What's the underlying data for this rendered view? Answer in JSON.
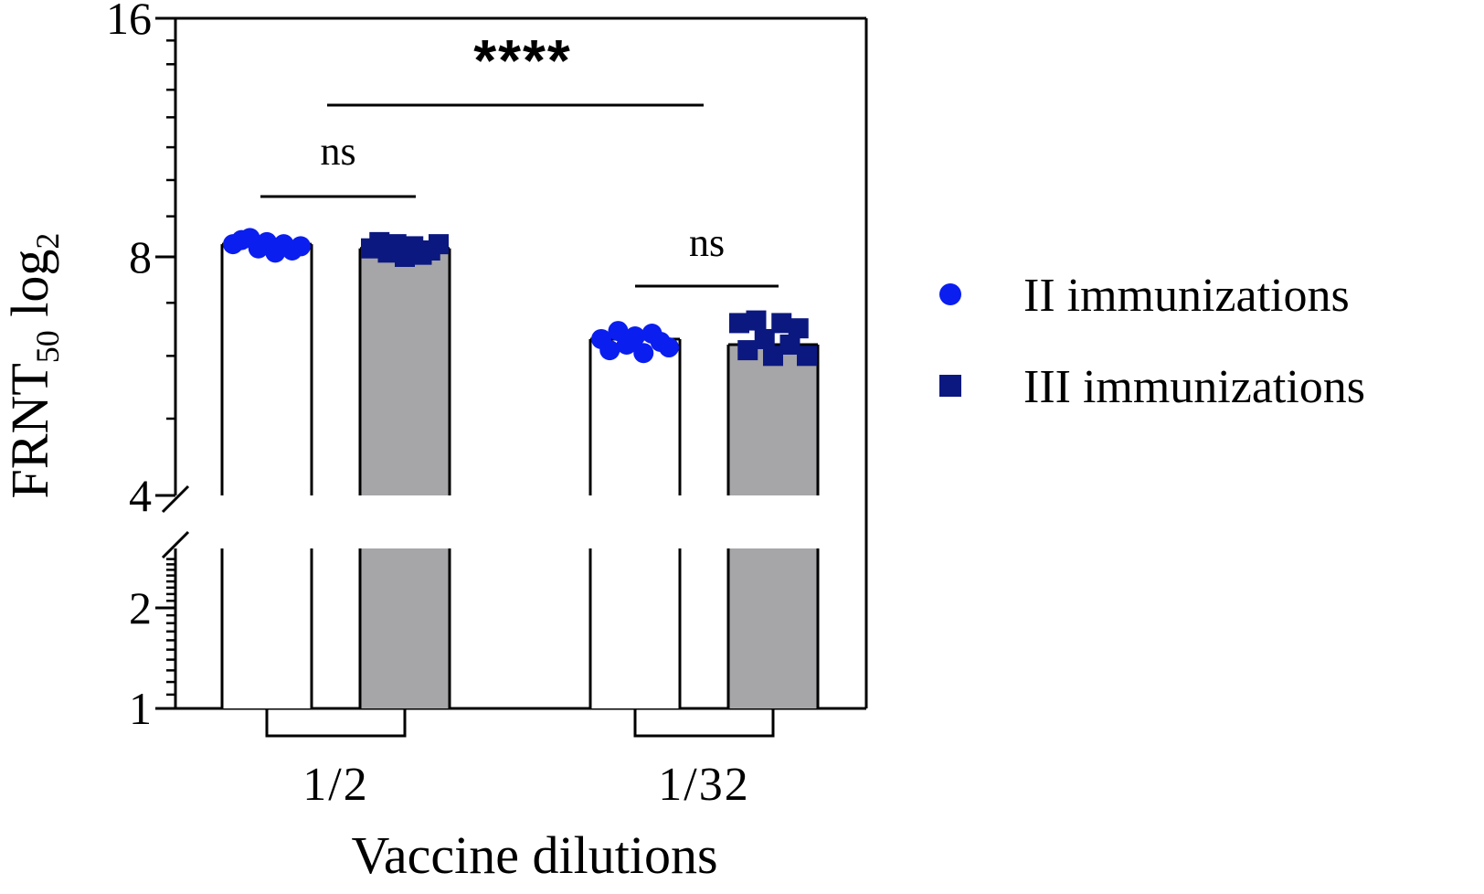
{
  "chart_data": {
    "type": "bar",
    "title": "",
    "xlabel": "Vaccine dilutions",
    "ylabel_main": "FRNT",
    "ylabel_sub": "50",
    "ylabel_tail": " log",
    "ylabel_tail_sub": "2",
    "y_scale": "log2",
    "y_axis_break": [
      2.8,
      4
    ],
    "ylim": [
      1,
      16
    ],
    "y_ticks": [
      {
        "value": 1,
        "label": "1"
      },
      {
        "value": 2,
        "label": "2"
      },
      {
        "value": 4,
        "label": "4"
      },
      {
        "value": 8,
        "label": "8"
      },
      {
        "value": 16,
        "label": "16"
      }
    ],
    "categories": [
      "1/2",
      "1/32"
    ],
    "series": [
      {
        "name": "II immunizations",
        "marker": "circle",
        "marker_color": "#0a1ef0",
        "bar_fill": "#ffffff",
        "values": [
          8.3,
          6.3
        ],
        "points": [
          [
            8.3,
            8.4,
            8.45,
            8.2,
            8.35,
            8.1,
            8.3,
            8.15,
            8.25
          ],
          [
            6.3,
            6.1,
            6.45,
            6.2,
            6.35,
            6.05,
            6.4,
            6.25,
            6.15
          ]
        ]
      },
      {
        "name": "III immunizations",
        "marker": "square",
        "marker_color": "#0b1880",
        "bar_fill": "#a6a5a8",
        "values": [
          8.2,
          6.2
        ],
        "points": [
          [
            8.2,
            8.35,
            8.1,
            8.3,
            8.0,
            8.25,
            8.05,
            8.15,
            8.3
          ],
          [
            6.6,
            6.1,
            6.65,
            6.3,
            6.0,
            6.6,
            6.2,
            6.5,
            6.0
          ]
        ]
      }
    ],
    "significance": [
      {
        "label": "****",
        "scope": "1/2 vs 1/32"
      },
      {
        "label": "ns",
        "scope": "1/2"
      },
      {
        "label": "ns",
        "scope": "1/32"
      }
    ],
    "legend_position": "right",
    "grid": false
  }
}
